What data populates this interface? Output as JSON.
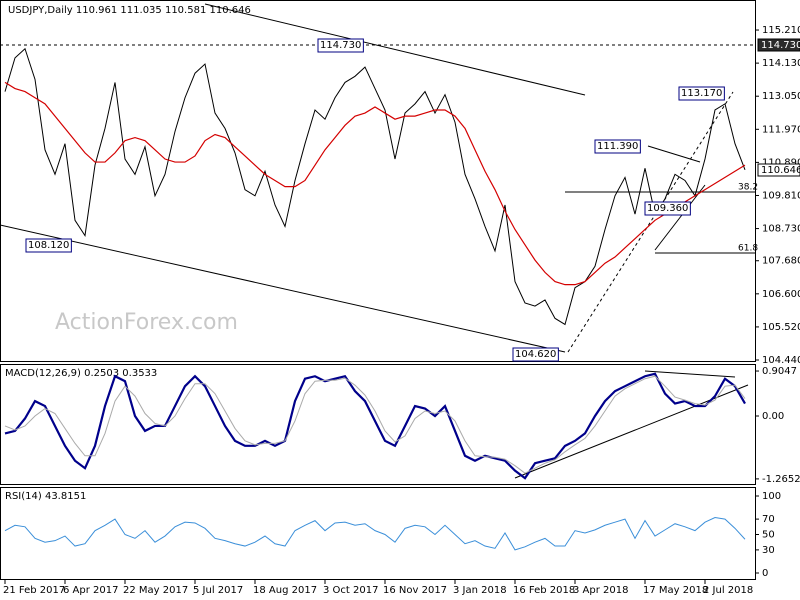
{
  "chart_data": [
    {
      "type": "line",
      "title": "USDJPY,Daily  110.961 111.035 110.581 110.646",
      "categories": [
        "21 Feb 2017",
        null,
        null,
        null,
        null,
        null,
        "6 Apr 2017",
        null,
        null,
        null,
        null,
        null,
        "22 May 2017",
        null,
        null,
        null,
        null,
        null,
        null,
        "5 Jul 2017",
        null,
        null,
        null,
        null,
        null,
        "18 Aug 2017",
        null,
        null,
        null,
        null,
        null,
        null,
        "3 Oct 2017",
        null,
        null,
        null,
        null,
        null,
        "16 Nov 2017",
        null,
        null,
        null,
        null,
        null,
        null,
        "3 Jan 2018",
        null,
        null,
        null,
        null,
        null,
        "16 Feb 2018",
        null,
        null,
        null,
        null,
        null,
        "3 Apr 2018",
        null,
        null,
        null,
        null,
        null,
        null,
        "17 May 2018",
        null,
        null,
        null,
        null,
        null,
        "2 Jul 2018",
        null,
        null,
        null,
        null
      ],
      "series": [
        {
          "color": "#000000",
          "values": [
            113.2,
            114.3,
            114.6,
            113.6,
            111.3,
            110.5,
            111.5,
            109.0,
            108.5,
            110.8,
            112.0,
            113.5,
            111.0,
            110.5,
            111.4,
            109.8,
            110.5,
            111.9,
            113.0,
            113.8,
            114.1,
            112.5,
            112.0,
            111.2,
            110.0,
            109.8,
            110.6,
            109.5,
            108.8,
            110.3,
            111.5,
            112.6,
            112.3,
            113.0,
            113.5,
            113.7,
            114.0,
            113.3,
            112.6,
            111.0,
            112.5,
            112.8,
            113.2,
            112.5,
            113.1,
            112.2,
            110.5,
            109.7,
            108.8,
            108.0,
            109.5,
            107.0,
            106.3,
            106.2,
            106.4,
            105.8,
            105.6,
            106.8,
            107.0,
            107.5,
            108.7,
            109.8,
            110.4,
            109.2,
            110.7,
            109.2,
            109.7,
            110.5,
            110.3,
            109.8,
            111.0,
            112.6,
            112.8,
            111.5,
            110.646
          ]
        },
        {
          "color": "#d40000",
          "values": [
            113.5,
            113.3,
            113.2,
            113.0,
            112.8,
            112.4,
            112.0,
            111.6,
            111.2,
            110.9,
            110.9,
            111.2,
            111.6,
            111.7,
            111.6,
            111.3,
            111.0,
            110.9,
            110.9,
            111.1,
            111.6,
            111.8,
            111.7,
            111.4,
            111.1,
            110.8,
            110.5,
            110.3,
            110.1,
            110.1,
            110.3,
            110.8,
            111.3,
            111.7,
            112.1,
            112.4,
            112.5,
            112.7,
            112.5,
            112.3,
            112.4,
            112.4,
            112.5,
            112.6,
            112.6,
            112.4,
            112.0,
            111.3,
            110.6,
            110.0,
            109.3,
            108.7,
            108.2,
            107.7,
            107.3,
            107.0,
            106.9,
            106.9,
            107.0,
            107.3,
            107.6,
            107.8,
            108.1,
            108.4,
            108.7,
            109.0,
            109.2,
            109.4,
            109.6,
            109.8,
            110.0,
            110.2,
            110.4,
            110.6,
            110.8
          ]
        }
      ],
      "ylim": [
        104.375,
        116.19
      ],
      "yticks": [
        {
          "value": 115.21,
          "label": "115.210"
        },
        {
          "value": 114.13,
          "label": "114.130"
        },
        {
          "value": 113.05,
          "label": "113.050"
        },
        {
          "value": 111.97,
          "label": "111.970"
        },
        {
          "value": 110.89,
          "label": "110.890"
        },
        {
          "value": 109.81,
          "label": "109.810"
        },
        {
          "value": 108.73,
          "label": "108.730"
        },
        {
          "value": 107.68,
          "label": "107.680"
        },
        {
          "value": 106.6,
          "label": "106.600"
        },
        {
          "value": 105.52,
          "label": "105.520"
        },
        {
          "value": 104.44,
          "label": "104.440"
        }
      ],
      "annotations": [
        "114.730",
        "108.120",
        "104.620",
        "111.390",
        "113.170",
        "109.360",
        "38.2",
        "61.8"
      ],
      "right_labels": [
        "114.730",
        "110.646"
      ],
      "watermark": "ActionForex.com"
    },
    {
      "type": "line",
      "title": "MACD(12,26,9) 0.2503 0.3533",
      "series": [
        {
          "color": "#00008b",
          "values": [
            -0.35,
            -0.3,
            -0.05,
            0.3,
            0.2,
            -0.2,
            -0.6,
            -0.9,
            -1.05,
            -0.6,
            0.2,
            0.8,
            0.7,
            0.0,
            -0.3,
            -0.2,
            -0.2,
            0.2,
            0.6,
            0.8,
            0.6,
            0.2,
            -0.2,
            -0.5,
            -0.6,
            -0.6,
            -0.5,
            -0.6,
            -0.5,
            0.3,
            0.75,
            0.8,
            0.7,
            0.75,
            0.8,
            0.5,
            0.3,
            -0.1,
            -0.5,
            -0.6,
            -0.2,
            0.2,
            0.15,
            0.0,
            0.2,
            -0.3,
            -0.8,
            -0.9,
            -0.8,
            -0.85,
            -0.9,
            -1.1,
            -1.25,
            -0.95,
            -0.9,
            -0.85,
            -0.6,
            -0.5,
            -0.35,
            0.0,
            0.3,
            0.5,
            0.6,
            0.7,
            0.8,
            0.85,
            0.45,
            0.25,
            0.3,
            0.2,
            0.2,
            0.4,
            0.75,
            0.6,
            0.25
          ]
        },
        {
          "color": "#aaaaaa",
          "values": [
            -0.2,
            -0.28,
            -0.2,
            0.0,
            0.15,
            0.05,
            -0.25,
            -0.55,
            -0.8,
            -0.8,
            -0.35,
            0.3,
            0.6,
            0.4,
            0.05,
            -0.15,
            -0.2,
            0.0,
            0.35,
            0.65,
            0.65,
            0.45,
            0.1,
            -0.25,
            -0.5,
            -0.58,
            -0.55,
            -0.55,
            -0.5,
            -0.1,
            0.45,
            0.7,
            0.72,
            0.72,
            0.76,
            0.62,
            0.42,
            0.1,
            -0.3,
            -0.52,
            -0.4,
            -0.05,
            0.1,
            0.05,
            0.1,
            -0.1,
            -0.5,
            -0.8,
            -0.82,
            -0.83,
            -0.87,
            -1.0,
            -1.15,
            -1.05,
            -0.95,
            -0.88,
            -0.72,
            -0.58,
            -0.45,
            -0.2,
            0.1,
            0.4,
            0.55,
            0.65,
            0.75,
            0.8,
            0.6,
            0.38,
            0.32,
            0.25,
            0.22,
            0.32,
            0.6,
            0.62,
            0.35
          ]
        }
      ],
      "ylim": [
        -1.388,
        1.026
      ],
      "yticks": [
        0.9047,
        {
          "value": 0,
          "label": "0.00"
        },
        -1.2652
      ]
    },
    {
      "type": "line",
      "title": "RSI(14) 43.8151",
      "series": [
        {
          "color": "#3b8fd9",
          "values": [
            55,
            62,
            60,
            45,
            40,
            42,
            48,
            35,
            38,
            55,
            62,
            70,
            50,
            45,
            55,
            40,
            48,
            60,
            66,
            65,
            58,
            45,
            42,
            38,
            35,
            40,
            48,
            38,
            35,
            55,
            62,
            68,
            55,
            65,
            66,
            62,
            64,
            55,
            50,
            40,
            58,
            62,
            60,
            50,
            62,
            50,
            38,
            42,
            35,
            32,
            52,
            30,
            34,
            40,
            45,
            35,
            35,
            55,
            52,
            56,
            62,
            66,
            70,
            45,
            68,
            48,
            56,
            64,
            60,
            55,
            66,
            72,
            70,
            58,
            43.8151
          ]
        }
      ],
      "ylim": [
        -9.1,
        110.4
      ],
      "yticks": [
        100,
        70,
        50,
        30,
        0
      ]
    }
  ]
}
